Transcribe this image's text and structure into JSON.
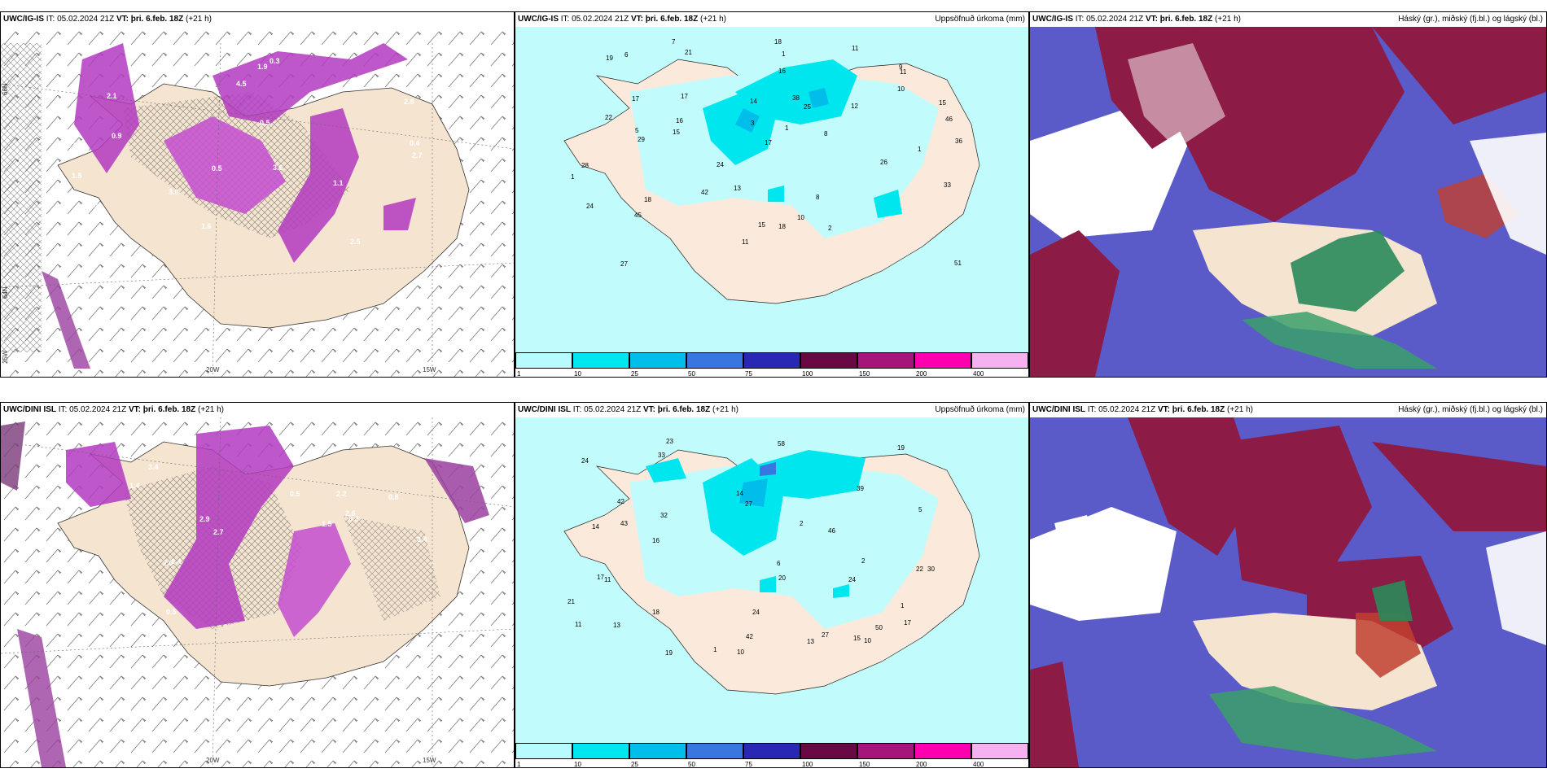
{
  "rows": [
    {
      "model": "UWC/IG-IS",
      "it_label": "IT:",
      "it_value": "05.02.2024 21Z",
      "vt_label": "VT:",
      "vt_value": "þri. 6.feb. 18Z",
      "lead": "(+21 h)"
    },
    {
      "model": "UWC/DINI ISL",
      "it_label": "IT:",
      "it_value": "05.02.2024 21Z",
      "vt_label": "VT:",
      "vt_value": "þri. 6.feb. 18Z",
      "lead": "(+21 h)"
    }
  ],
  "panel_titles": {
    "precip": "Uppsöfnuð úrkoma (mm)",
    "clouds": "Háský (gr.), miðský (fj.bl.) og lágský (bl.)"
  },
  "axis_labels": {
    "lon_20w": "20W",
    "lon_15w": "15W",
    "lat_66n": "66N",
    "lat_64n": "64N",
    "lat_25w": "25W"
  },
  "colorbar": {
    "labels": [
      "1",
      "10",
      "25",
      "50",
      "75",
      "100",
      "150",
      "200",
      "400"
    ],
    "colors": [
      "#b8fbff",
      "#00e6ef",
      "#00bde9",
      "#3a76e0",
      "#2828b4",
      "#6a0844",
      "#a6157a",
      "#ff00b0",
      "#f6b2f0"
    ]
  },
  "precip_top_values": [
    "12",
    "11",
    "16",
    "7",
    "22",
    "11",
    "14",
    "9",
    "8",
    "8",
    "28",
    "46",
    "45",
    "51",
    "29",
    "42",
    "24",
    "25",
    "17",
    "16",
    "38",
    "36",
    "26",
    "13",
    "27",
    "17",
    "15",
    "15",
    "33",
    "19",
    "11",
    "18",
    "10",
    "10",
    "18",
    "17",
    "15",
    "21",
    "18",
    "24",
    "5",
    "2",
    "3",
    "6",
    "1",
    "1",
    "1",
    "1"
  ],
  "precip_bottom_values": [
    "10",
    "11",
    "6",
    "19",
    "14",
    "13",
    "15",
    "20",
    "32",
    "58",
    "50",
    "39",
    "21",
    "43",
    "42",
    "27",
    "30",
    "24",
    "33",
    "24",
    "17",
    "46",
    "42",
    "18",
    "11",
    "16",
    "13",
    "19",
    "17",
    "5",
    "23",
    "24",
    "22",
    "27",
    "14",
    "10",
    "1",
    "2",
    "1",
    "2"
  ],
  "wind_top_values": [
    "1.6",
    "0.5",
    "2.1",
    "3.0",
    "2.5",
    "1.5",
    "2.7",
    "2.3",
    "3.6",
    "1.1",
    "0.5",
    "0.9",
    "0.4",
    "0.3",
    "3.7",
    "2.8",
    "4.5",
    "1.9"
  ],
  "wind_bottom_values": [
    "2.7",
    "3.4",
    "2.9",
    "2.0",
    "2.5",
    "2.6",
    "3.4",
    "2.2",
    "1.4",
    "0.5",
    "0.4",
    "0.8",
    "0.3",
    "1.5",
    "0.5",
    "0.6"
  ]
}
